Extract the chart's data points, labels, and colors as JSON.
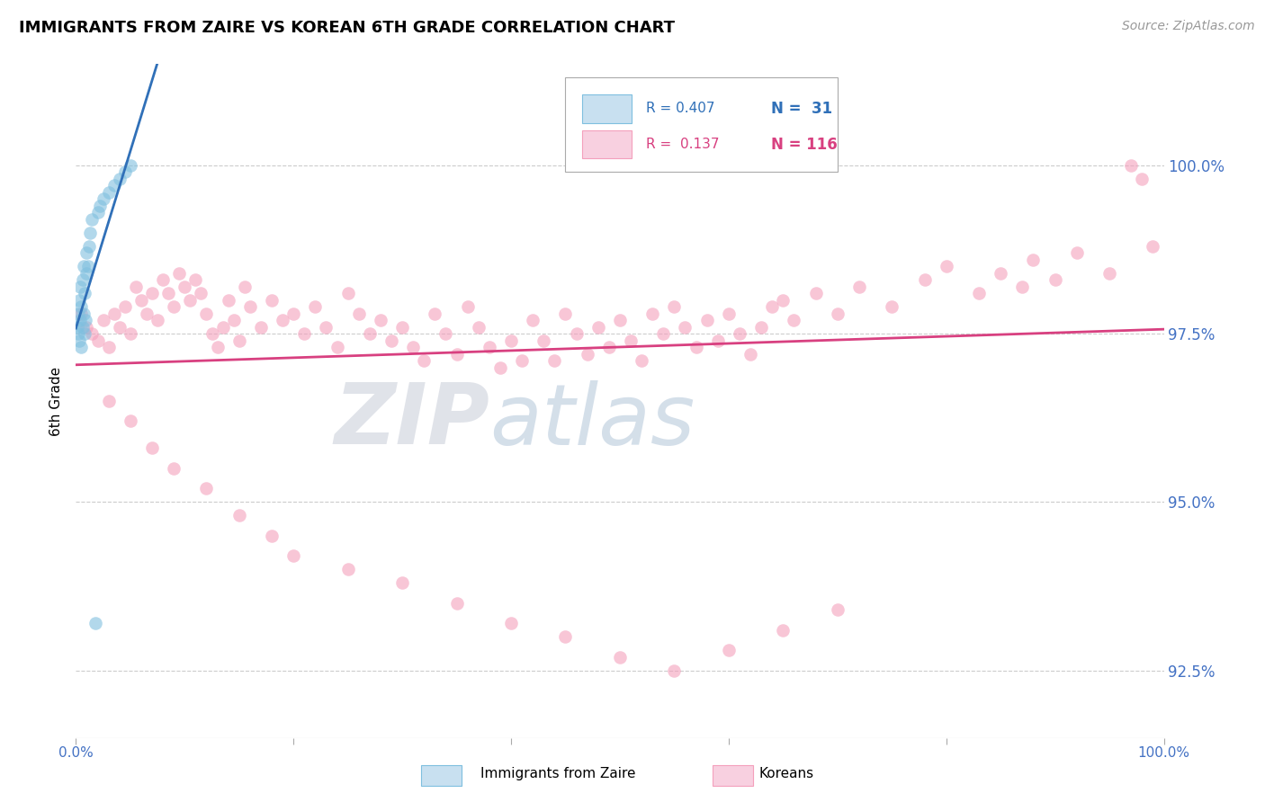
{
  "title": "IMMIGRANTS FROM ZAIRE VS KOREAN 6TH GRADE CORRELATION CHART",
  "source": "Source: ZipAtlas.com",
  "ylabel": "6th Grade",
  "ytick_values": [
    92.5,
    95.0,
    97.5,
    100.0
  ],
  "xlim": [
    0.0,
    100.0
  ],
  "ylim": [
    91.5,
    101.5
  ],
  "legend_blue_r": "0.407",
  "legend_blue_n": "31",
  "legend_pink_r": "0.137",
  "legend_pink_n": "116",
  "blue_color": "#7fbfdf",
  "pink_color": "#f4a0bc",
  "blue_line_color": "#3070b8",
  "pink_line_color": "#d84080",
  "background_color": "#ffffff",
  "blue_points_x": [
    0.1,
    0.2,
    0.2,
    0.3,
    0.3,
    0.4,
    0.4,
    0.5,
    0.5,
    0.6,
    0.6,
    0.7,
    0.7,
    0.8,
    0.8,
    0.9,
    1.0,
    1.0,
    1.1,
    1.2,
    1.3,
    1.5,
    2.0,
    2.2,
    2.5,
    3.0,
    3.5,
    4.0,
    4.5,
    5.0,
    1.8
  ],
  "blue_points_y": [
    97.6,
    97.5,
    97.8,
    97.4,
    98.0,
    97.7,
    98.2,
    97.3,
    97.9,
    97.6,
    98.3,
    97.8,
    98.5,
    97.5,
    98.1,
    97.7,
    98.4,
    98.7,
    98.5,
    98.8,
    99.0,
    99.2,
    99.3,
    99.4,
    99.5,
    99.6,
    99.7,
    99.8,
    99.9,
    100.0,
    93.2
  ],
  "pink_points_x": [
    0.5,
    1.0,
    1.5,
    2.0,
    2.5,
    3.0,
    3.5,
    4.0,
    4.5,
    5.0,
    5.5,
    6.0,
    6.5,
    7.0,
    7.5,
    8.0,
    8.5,
    9.0,
    9.5,
    10.0,
    10.5,
    11.0,
    11.5,
    12.0,
    12.5,
    13.0,
    13.5,
    14.0,
    14.5,
    15.0,
    15.5,
    16.0,
    17.0,
    18.0,
    19.0,
    20.0,
    21.0,
    22.0,
    23.0,
    24.0,
    25.0,
    26.0,
    27.0,
    28.0,
    29.0,
    30.0,
    31.0,
    32.0,
    33.0,
    34.0,
    35.0,
    36.0,
    37.0,
    38.0,
    39.0,
    40.0,
    41.0,
    42.0,
    43.0,
    44.0,
    45.0,
    46.0,
    47.0,
    48.0,
    49.0,
    50.0,
    51.0,
    52.0,
    53.0,
    54.0,
    55.0,
    56.0,
    57.0,
    58.0,
    59.0,
    60.0,
    61.0,
    62.0,
    63.0,
    64.0,
    65.0,
    66.0,
    68.0,
    70.0,
    72.0,
    75.0,
    78.0,
    80.0,
    83.0,
    85.0,
    87.0,
    88.0,
    90.0,
    92.0,
    95.0,
    97.0,
    98.0,
    99.0,
    3.0,
    5.0,
    7.0,
    9.0,
    12.0,
    15.0,
    18.0,
    20.0,
    25.0,
    30.0,
    35.0,
    40.0,
    45.0,
    50.0,
    55.0,
    60.0,
    65.0,
    70.0
  ],
  "pink_points_y": [
    97.8,
    97.6,
    97.5,
    97.4,
    97.7,
    97.3,
    97.8,
    97.6,
    97.9,
    97.5,
    98.2,
    98.0,
    97.8,
    98.1,
    97.7,
    98.3,
    98.1,
    97.9,
    98.4,
    98.2,
    98.0,
    98.3,
    98.1,
    97.8,
    97.5,
    97.3,
    97.6,
    98.0,
    97.7,
    97.4,
    98.2,
    97.9,
    97.6,
    98.0,
    97.7,
    97.8,
    97.5,
    97.9,
    97.6,
    97.3,
    98.1,
    97.8,
    97.5,
    97.7,
    97.4,
    97.6,
    97.3,
    97.1,
    97.8,
    97.5,
    97.2,
    97.9,
    97.6,
    97.3,
    97.0,
    97.4,
    97.1,
    97.7,
    97.4,
    97.1,
    97.8,
    97.5,
    97.2,
    97.6,
    97.3,
    97.7,
    97.4,
    97.1,
    97.8,
    97.5,
    97.9,
    97.6,
    97.3,
    97.7,
    97.4,
    97.8,
    97.5,
    97.2,
    97.6,
    97.9,
    98.0,
    97.7,
    98.1,
    97.8,
    98.2,
    97.9,
    98.3,
    98.5,
    98.1,
    98.4,
    98.2,
    98.6,
    98.3,
    98.7,
    98.4,
    100.0,
    99.8,
    98.8,
    96.5,
    96.2,
    95.8,
    95.5,
    95.2,
    94.8,
    94.5,
    94.2,
    94.0,
    93.8,
    93.5,
    93.2,
    93.0,
    92.7,
    92.5,
    92.8,
    93.1,
    93.4
  ]
}
